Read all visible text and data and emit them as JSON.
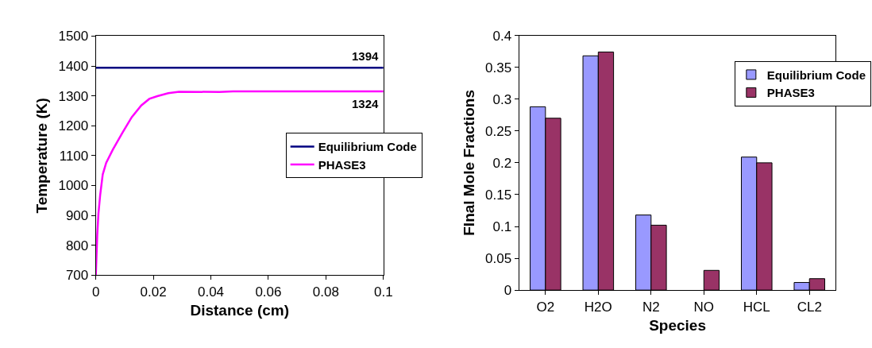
{
  "chart_data": [
    {
      "type": "line",
      "xlabel": "Distance (cm)",
      "ylabel": "Temperature (K)",
      "xlim": [
        0,
        0.1
      ],
      "xticks": [
        0,
        0.02,
        0.04,
        0.06,
        0.08,
        0.1
      ],
      "ylim": [
        700,
        1500
      ],
      "yticks": [
        700,
        800,
        900,
        1000,
        1100,
        1200,
        1300,
        1400,
        1500
      ],
      "legend": "right",
      "marker": "none",
      "line_style": "solid",
      "series": [
        {
          "name": "Equilibrium Code",
          "color": "#000080",
          "x": [
            0,
            0.1
          ],
          "values": [
            1394,
            1394
          ]
        },
        {
          "name": "PHASE3",
          "color": "#ff00ff",
          "x": [
            0,
            0.0005,
            0.0009,
            0.0015,
            0.0024,
            0.0036,
            0.0059,
            0.0092,
            0.0125,
            0.0158,
            0.0186,
            0.0214,
            0.0252,
            0.0289,
            0.043,
            0.0477,
            0.0618,
            0.1
          ],
          "values": [
            700,
            835,
            905,
            967,
            1037,
            1076,
            1120,
            1176,
            1229,
            1268,
            1290,
            1299,
            1309,
            1314,
            1313,
            1315,
            1315,
            1315
          ]
        }
      ],
      "annotations": [
        {
          "text": "1394",
          "x": 0.1,
          "y": 1394
        },
        {
          "text": "1324",
          "x": 0.1,
          "y": 1324
        }
      ]
    },
    {
      "type": "bar",
      "xlabel": "Species",
      "ylabel": "FInal Mole Fractions",
      "categories": [
        "O2",
        "H2O",
        "N2",
        "NO",
        "HCL",
        "CL2"
      ],
      "ylim": [
        0,
        0.4
      ],
      "yticks": [
        0,
        0.05,
        0.1,
        0.15,
        0.2,
        0.25,
        0.3,
        0.35,
        0.4
      ],
      "legend": "top right",
      "series": [
        {
          "name": "Equilibrium Code",
          "color": "#9999ff",
          "values": [
            0.288,
            0.368,
            0.118,
            null,
            0.209,
            0.012
          ]
        },
        {
          "name": "PHASE3",
          "color": "#993366",
          "values": [
            0.27,
            0.374,
            0.102,
            0.031,
            0.2,
            0.018
          ]
        }
      ]
    }
  ]
}
